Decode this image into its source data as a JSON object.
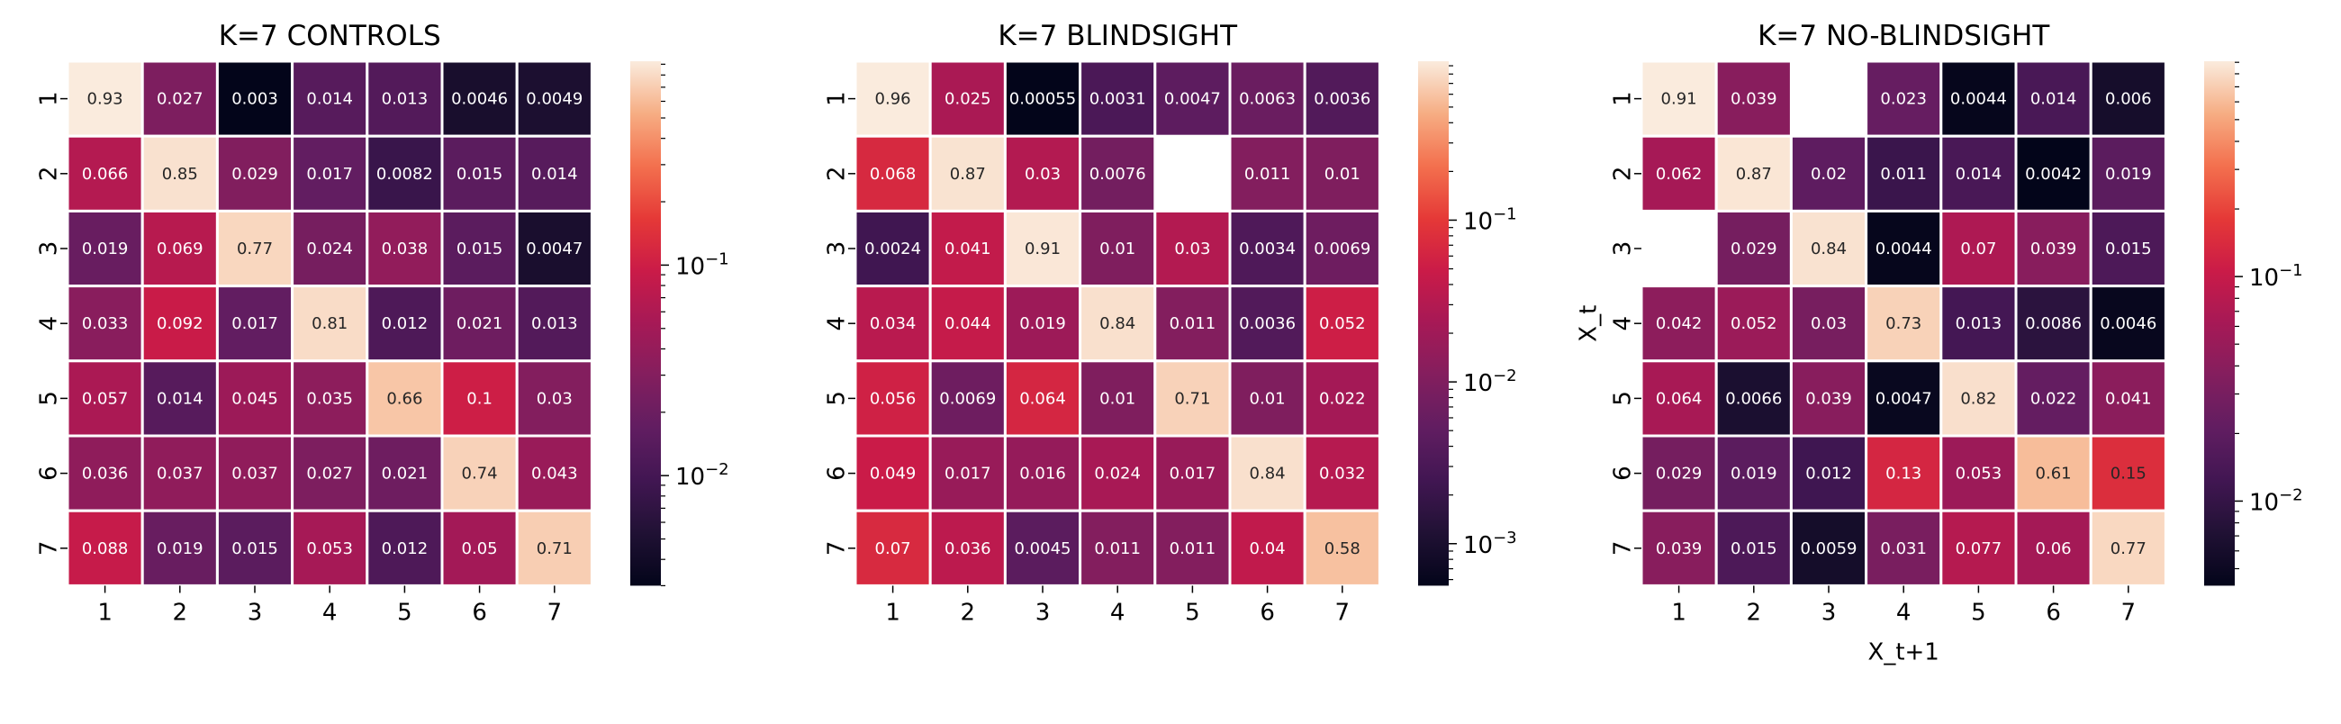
{
  "chart_data": [
    {
      "type": "heatmap",
      "title": "K=7 CONTROLS",
      "xlabel": "",
      "ylabel": "",
      "x_categories": [
        "1",
        "2",
        "3",
        "4",
        "5",
        "6",
        "7"
      ],
      "y_categories": [
        "1",
        "2",
        "3",
        "4",
        "5",
        "6",
        "7"
      ],
      "values": [
        [
          0.93,
          0.027,
          0.003,
          0.014,
          0.013,
          0.0046,
          0.0049
        ],
        [
          0.066,
          0.85,
          0.029,
          0.017,
          0.0082,
          0.015,
          0.014
        ],
        [
          0.019,
          0.069,
          0.77,
          0.024,
          0.038,
          0.015,
          0.0047
        ],
        [
          0.033,
          0.092,
          0.017,
          0.81,
          0.012,
          0.021,
          0.013
        ],
        [
          0.057,
          0.014,
          0.045,
          0.035,
          0.66,
          0.1,
          0.03
        ],
        [
          0.036,
          0.037,
          0.037,
          0.027,
          0.021,
          0.74,
          0.043
        ],
        [
          0.088,
          0.019,
          0.015,
          0.053,
          0.012,
          0.05,
          0.71
        ]
      ],
      "colorbar": {
        "scale": "log",
        "range": [
          0.003,
          0.93
        ],
        "ticks": [
          {
            "value": 0.01,
            "label": "10",
            "exp": "−2"
          },
          {
            "value": 0.1,
            "label": "10",
            "exp": "−1"
          }
        ]
      }
    },
    {
      "type": "heatmap",
      "title": "K=7 BLINDSIGHT",
      "xlabel": "",
      "ylabel": "",
      "x_categories": [
        "1",
        "2",
        "3",
        "4",
        "5",
        "6",
        "7"
      ],
      "y_categories": [
        "1",
        "2",
        "3",
        "4",
        "5",
        "6",
        "7"
      ],
      "values": [
        [
          0.96,
          0.025,
          0.00055,
          0.0031,
          0.0047,
          0.0063,
          0.0036
        ],
        [
          0.068,
          0.87,
          0.03,
          0.0076,
          null,
          0.011,
          0.01
        ],
        [
          0.0024,
          0.041,
          0.91,
          0.01,
          0.03,
          0.0034,
          0.0069
        ],
        [
          0.034,
          0.044,
          0.019,
          0.84,
          0.011,
          0.0036,
          0.052
        ],
        [
          0.056,
          0.0069,
          0.064,
          0.01,
          0.71,
          0.01,
          0.022
        ],
        [
          0.049,
          0.017,
          0.016,
          0.024,
          0.017,
          0.84,
          0.032
        ],
        [
          0.07,
          0.036,
          0.0045,
          0.011,
          0.011,
          0.04,
          0.58
        ]
      ],
      "colorbar": {
        "scale": "log",
        "range": [
          0.00055,
          0.96
        ],
        "ticks": [
          {
            "value": 0.001,
            "label": "10",
            "exp": "−3"
          },
          {
            "value": 0.01,
            "label": "10",
            "exp": "−2"
          },
          {
            "value": 0.1,
            "label": "10",
            "exp": "−1"
          }
        ]
      }
    },
    {
      "type": "heatmap",
      "title": "K=7 NO-BLINDSIGHT",
      "xlabel": "X_t+1",
      "ylabel": "X_t",
      "x_categories": [
        "1",
        "2",
        "3",
        "4",
        "5",
        "6",
        "7"
      ],
      "y_categories": [
        "1",
        "2",
        "3",
        "4",
        "5",
        "6",
        "7"
      ],
      "values": [
        [
          0.91,
          0.039,
          null,
          0.023,
          0.0044,
          0.014,
          0.006
        ],
        [
          0.062,
          0.87,
          0.02,
          0.011,
          0.014,
          0.0042,
          0.019
        ],
        [
          null,
          0.029,
          0.84,
          0.0044,
          0.07,
          0.039,
          0.015
        ],
        [
          0.042,
          0.052,
          0.03,
          0.73,
          0.013,
          0.0086,
          0.0046
        ],
        [
          0.064,
          0.0066,
          0.039,
          0.0047,
          0.82,
          0.022,
          0.041
        ],
        [
          0.029,
          0.019,
          0.012,
          0.13,
          0.053,
          0.61,
          0.15
        ],
        [
          0.039,
          0.015,
          0.0059,
          0.031,
          0.077,
          0.06,
          0.77
        ]
      ],
      "colorbar": {
        "scale": "log",
        "range": [
          0.0042,
          0.91
        ],
        "ticks": [
          {
            "value": 0.01,
            "label": "10",
            "exp": "−2"
          },
          {
            "value": 0.1,
            "label": "10",
            "exp": "−1"
          }
        ]
      }
    }
  ]
}
